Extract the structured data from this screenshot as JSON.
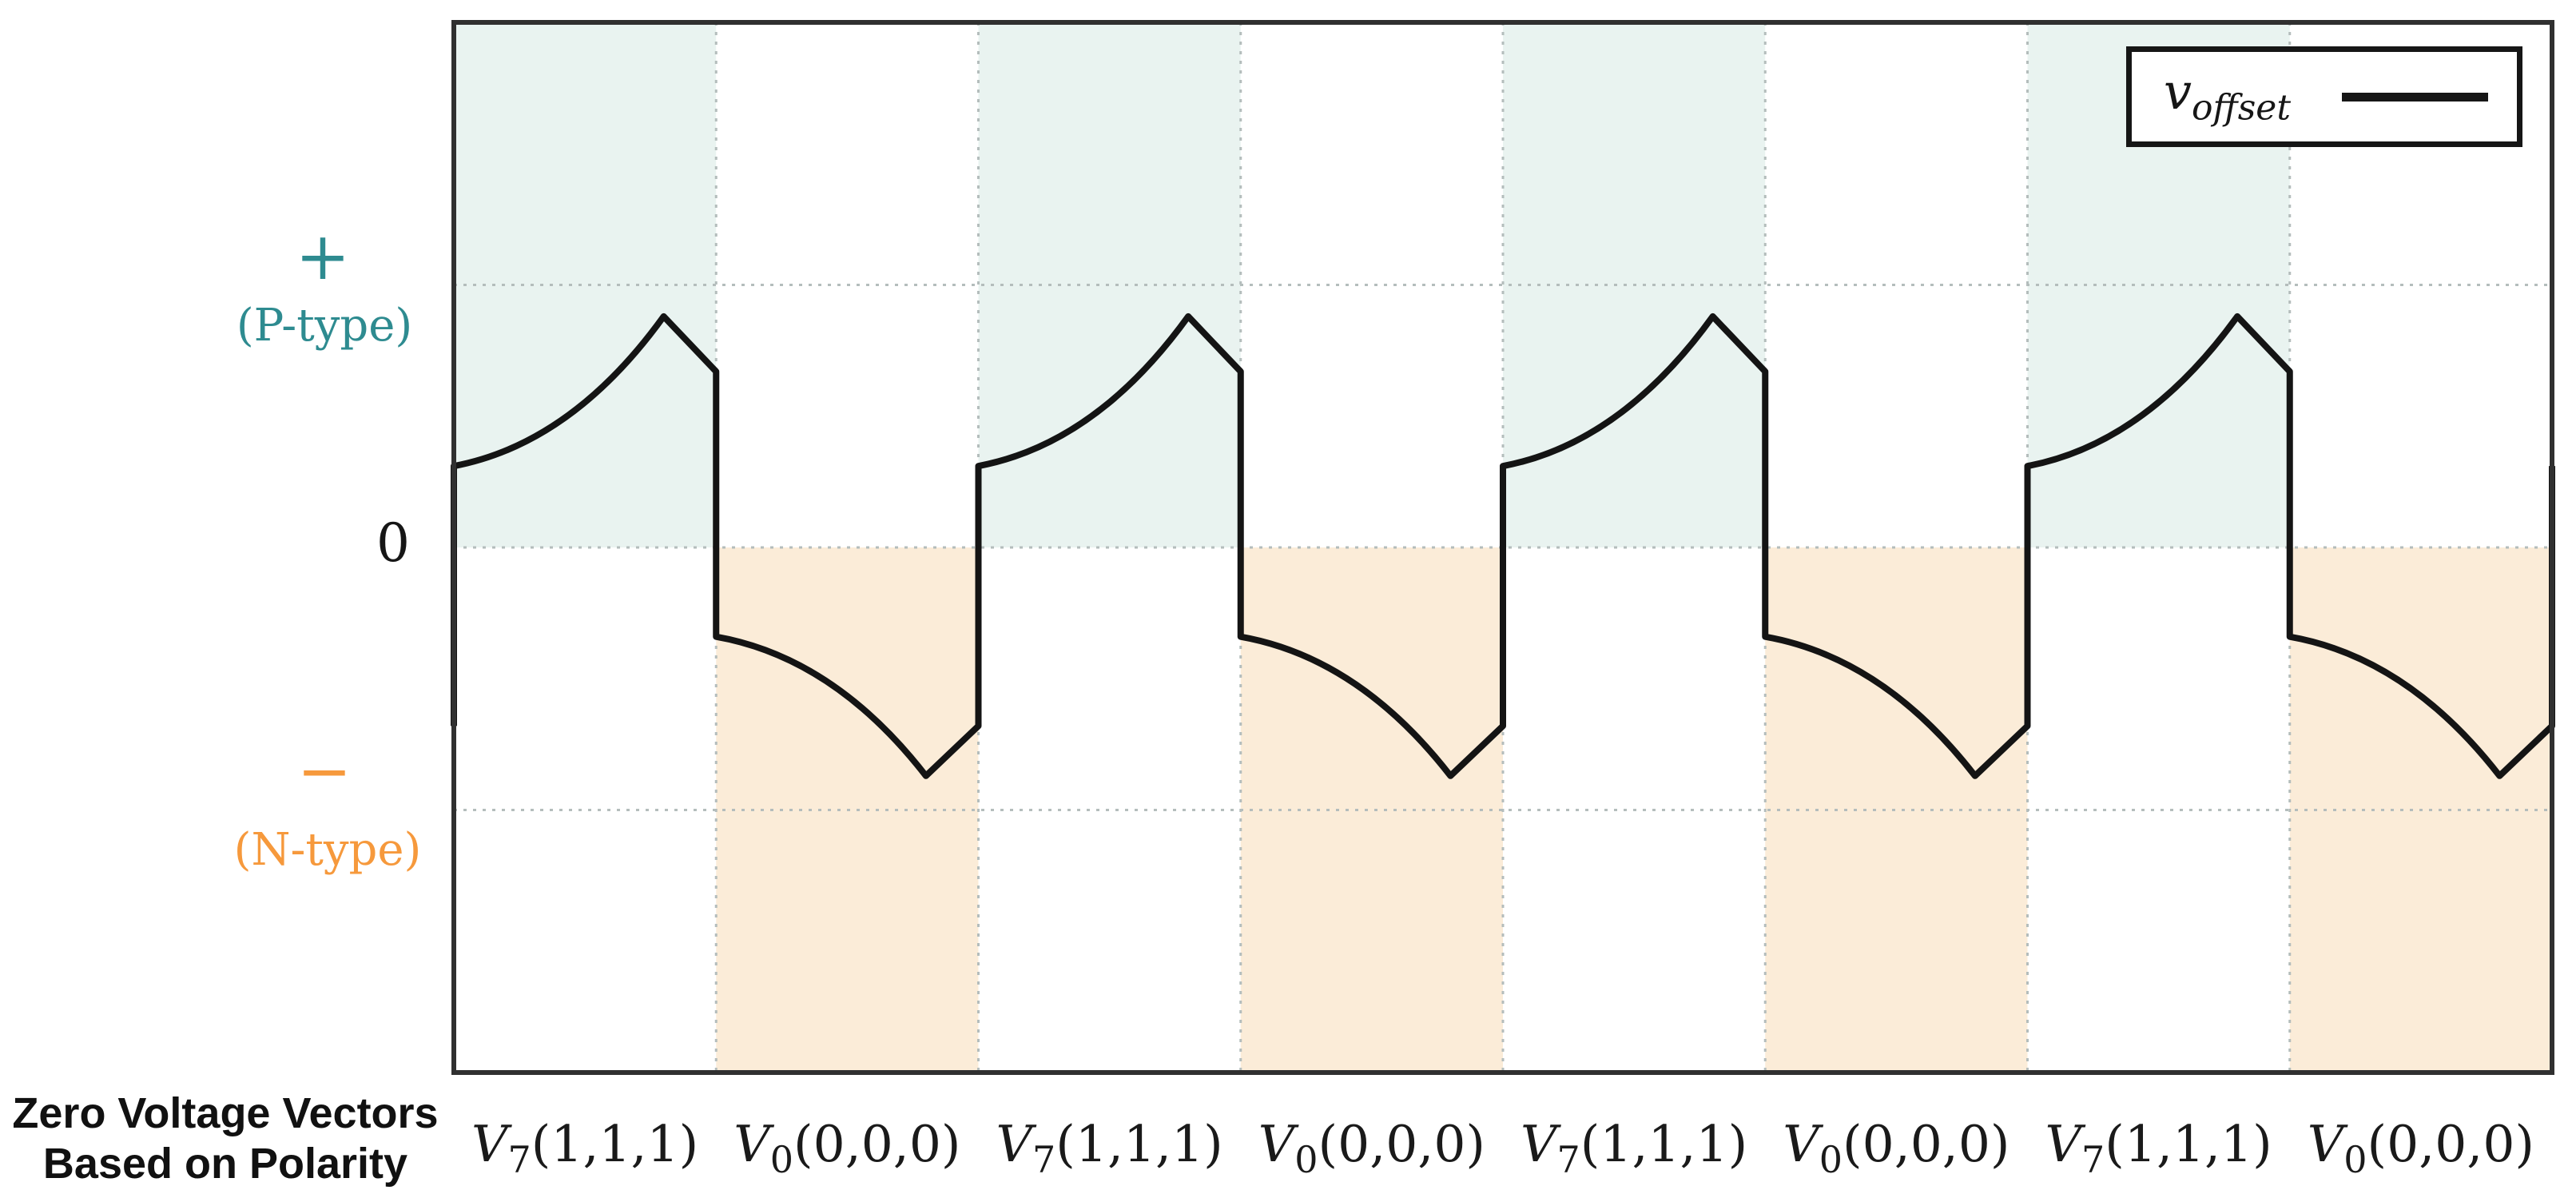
{
  "caption": {
    "line1": "Zero Voltage Vectors",
    "line2": "Based on Polarity"
  },
  "axis_left": {
    "plus": "+",
    "p_label": "(P-type)",
    "zero": "0",
    "minus": "−",
    "n_label": "(N-type)"
  },
  "legend": {
    "series_base": "v",
    "series_sub": "offset"
  },
  "colors": {
    "p_band": "#e9f3f0",
    "n_band": "#fbecd8",
    "p_text": "#2e8b90",
    "n_text": "#f6993c",
    "line": "#141414",
    "grid": "#b4bdbc",
    "border": "#303030"
  },
  "chart_data": {
    "type": "line",
    "title": "",
    "legend_entries": [
      "v_offset"
    ],
    "legend_position": "top-right",
    "grid": "dotted",
    "x_segments": [
      {
        "base": "V",
        "sub": "7",
        "args": "(1,1,1)",
        "polarity": "P"
      },
      {
        "base": "V",
        "sub": "0",
        "args": "(0,0,0)",
        "polarity": "N"
      },
      {
        "base": "V",
        "sub": "7",
        "args": "(1,1,1)",
        "polarity": "P"
      },
      {
        "base": "V",
        "sub": "0",
        "args": "(0,0,0)",
        "polarity": "N"
      },
      {
        "base": "V",
        "sub": "7",
        "args": "(1,1,1)",
        "polarity": "P"
      },
      {
        "base": "V",
        "sub": "0",
        "args": "(0,0,0)",
        "polarity": "N"
      },
      {
        "base": "V",
        "sub": "7",
        "args": "(1,1,1)",
        "polarity": "P"
      },
      {
        "base": "V",
        "sub": "0",
        "args": "(0,0,0)",
        "polarity": "N"
      }
    ],
    "y_levels": [
      {
        "label": "+ (P-type)",
        "value": 1
      },
      {
        "label": "0",
        "value": 0
      },
      {
        "label": "− (N-type)",
        "value": -1
      }
    ],
    "y_unit": "qualitative offset-voltage polarity (gridlines at ±1)",
    "series": [
      {
        "name": "v_offset",
        "periods": 4,
        "p_segment_keypoints": [
          {
            "t": 0.0,
            "v": 0.31
          },
          {
            "t": 0.8,
            "v": 0.88
          },
          {
            "t": 1.0,
            "v": 0.67
          }
        ],
        "n_segment_keypoints": [
          {
            "t": 0.0,
            "v": -0.34
          },
          {
            "t": 0.8,
            "v": -0.87
          },
          {
            "t": 1.0,
            "v": -0.68
          }
        ],
        "transitions": "vertical step at every segment boundary",
        "p_shape": "concave accelerating rise to peak, then straight fall",
        "n_shape": "accelerating fall to trough, then straight rise"
      }
    ],
    "shading": "P-type segments shaded teal above zero line; N-type segments shaded orange below zero line"
  }
}
